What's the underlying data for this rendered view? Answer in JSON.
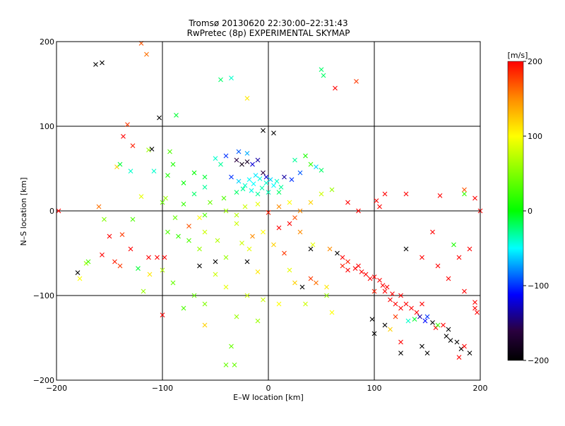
{
  "chart_data": {
    "type": "scatter",
    "title": "Tromsø 20130620 22:30:00–22:31:43",
    "subtitle": "RwPretec (8p) EXPERIMENTAL SKYMAP",
    "xlabel": "E–W location [km]",
    "ylabel": "N–S location [km]",
    "xlim": [
      -200,
      200
    ],
    "ylim": [
      -200,
      200
    ],
    "xticks": [
      "−200",
      "−100",
      "0",
      "100",
      "200"
    ],
    "yticks": [
      "−200",
      "−100",
      "0",
      "100",
      "200"
    ],
    "grid": true,
    "colorbar": {
      "label": "[m/s]",
      "range": [
        -200,
        200
      ],
      "ticks": [
        "200",
        "100",
        "0",
        "−100",
        "−200"
      ]
    },
    "points": [
      [
        -163,
        173,
        -200,
        "x"
      ],
      [
        -157,
        175,
        -200,
        "x"
      ],
      [
        -120,
        198,
        170,
        "x"
      ],
      [
        -115,
        185,
        160,
        "x"
      ],
      [
        -45,
        155,
        -20,
        "x"
      ],
      [
        -35,
        157,
        -40,
        "x"
      ],
      [
        -87,
        113,
        -10,
        "x"
      ],
      [
        -20,
        133,
        110,
        "x"
      ],
      [
        50,
        167,
        -20,
        "x"
      ],
      [
        52,
        160,
        -20,
        "x"
      ],
      [
        63,
        145,
        200,
        "x"
      ],
      [
        83,
        153,
        180,
        "x"
      ],
      [
        -103,
        110,
        -200,
        "x"
      ],
      [
        -5,
        95,
        -200,
        "x"
      ],
      [
        5,
        92,
        -200,
        "x"
      ],
      [
        -133,
        102,
        180,
        "x"
      ],
      [
        -137,
        88,
        200,
        "x"
      ],
      [
        -128,
        77,
        190,
        "x"
      ],
      [
        -113,
        72,
        60,
        "x"
      ],
      [
        -110,
        73,
        -200,
        "x"
      ],
      [
        -93,
        70,
        30,
        "x"
      ],
      [
        -143,
        52,
        120,
        "x"
      ],
      [
        -140,
        55,
        -10,
        "x"
      ],
      [
        -130,
        47,
        -40,
        "x"
      ],
      [
        -108,
        47,
        -40,
        "x"
      ],
      [
        -95,
        42,
        10,
        "x"
      ],
      [
        -80,
        33,
        0,
        "x"
      ],
      [
        -50,
        62,
        -40,
        "x"
      ],
      [
        -45,
        55,
        -30,
        "x"
      ],
      [
        -30,
        60,
        -150,
        "x"
      ],
      [
        -25,
        55,
        -180,
        "x"
      ],
      [
        -20,
        58,
        -170,
        "x"
      ],
      [
        -15,
        55,
        -120,
        "x"
      ],
      [
        -10,
        60,
        -130,
        "x"
      ],
      [
        -5,
        45,
        -150,
        "x"
      ],
      [
        -2,
        40,
        -120,
        "x"
      ],
      [
        -35,
        40,
        -100,
        "x"
      ],
      [
        -28,
        35,
        -60,
        "x"
      ],
      [
        -22,
        30,
        -40,
        "x"
      ],
      [
        -18,
        37,
        -50,
        "x"
      ],
      [
        -12,
        42,
        -55,
        "x"
      ],
      [
        -8,
        38,
        -45,
        "x"
      ],
      [
        -14,
        32,
        -50,
        "x"
      ],
      [
        -6,
        27,
        -35,
        "x"
      ],
      [
        -2,
        33,
        -40,
        "x"
      ],
      [
        2,
        37,
        -60,
        "x"
      ],
      [
        5,
        30,
        -50,
        "x"
      ],
      [
        8,
        35,
        -40,
        "x"
      ],
      [
        12,
        28,
        -30,
        "x"
      ],
      [
        -16,
        24,
        -45,
        "x"
      ],
      [
        -24,
        26,
        -30,
        "x"
      ],
      [
        -30,
        22,
        -20,
        "x"
      ],
      [
        -10,
        20,
        -30,
        "x"
      ],
      [
        0,
        22,
        -35,
        "x"
      ],
      [
        10,
        22,
        -20,
        "x"
      ],
      [
        15,
        40,
        -130,
        "x"
      ],
      [
        22,
        37,
        -100,
        "x"
      ],
      [
        30,
        45,
        -90,
        "x"
      ],
      [
        45,
        52,
        -60,
        "x"
      ],
      [
        50,
        48,
        -20,
        "x"
      ],
      [
        -60,
        28,
        -30,
        "x"
      ],
      [
        -70,
        20,
        -20,
        "x"
      ],
      [
        -55,
        10,
        40,
        "x"
      ],
      [
        -42,
        15,
        30,
        "x"
      ],
      [
        -22,
        5,
        80,
        "x"
      ],
      [
        0,
        -2,
        190,
        "x"
      ],
      [
        10,
        5,
        150,
        "x"
      ],
      [
        20,
        10,
        100,
        "x"
      ],
      [
        25,
        -8,
        170,
        "x"
      ],
      [
        -160,
        5,
        160,
        "x"
      ],
      [
        -120,
        17,
        90,
        "x"
      ],
      [
        -97,
        15,
        60,
        "x"
      ],
      [
        -88,
        -8,
        40,
        "x"
      ],
      [
        -75,
        -18,
        170,
        "x"
      ],
      [
        -65,
        -8,
        100,
        "x"
      ],
      [
        -95,
        -25,
        30,
        "x"
      ],
      [
        -85,
        -30,
        20,
        "x"
      ],
      [
        -75,
        -35,
        30,
        "x"
      ],
      [
        -150,
        -30,
        200,
        "x"
      ],
      [
        -138,
        -28,
        180,
        "x"
      ],
      [
        -130,
        -45,
        200,
        "x"
      ],
      [
        -157,
        -52,
        200,
        "x"
      ],
      [
        -145,
        -60,
        190,
        "x"
      ],
      [
        -140,
        -65,
        180,
        "x"
      ],
      [
        -180,
        -73,
        -200,
        "x"
      ],
      [
        -178,
        -80,
        100,
        "x"
      ],
      [
        -172,
        -62,
        60,
        "x"
      ],
      [
        -113,
        -55,
        200,
        "x"
      ],
      [
        -105,
        -55,
        200,
        "x"
      ],
      [
        -98,
        -55,
        200,
        "x"
      ],
      [
        -123,
        -68,
        -10,
        "x"
      ],
      [
        -112,
        -75,
        110,
        "x"
      ],
      [
        -100,
        -70,
        70,
        "x"
      ],
      [
        -118,
        -95,
        60,
        "x"
      ],
      [
        -90,
        -85,
        40,
        "x"
      ],
      [
        -100,
        -123,
        200,
        "x"
      ],
      [
        -65,
        -65,
        -200,
        "x"
      ],
      [
        -50,
        -60,
        -200,
        "x"
      ],
      [
        -65,
        -45,
        60,
        "x"
      ],
      [
        -60,
        -25,
        80,
        "x"
      ],
      [
        -48,
        -35,
        70,
        "x"
      ],
      [
        -40,
        -55,
        60,
        "x"
      ],
      [
        -30,
        -15,
        80,
        "x"
      ],
      [
        -20,
        -60,
        -200,
        "x"
      ],
      [
        -10,
        -72,
        110,
        "x"
      ],
      [
        -5,
        -105,
        80,
        "x"
      ],
      [
        -30,
        -125,
        60,
        "x"
      ],
      [
        -35,
        -160,
        40,
        "x"
      ],
      [
        -40,
        -182,
        40,
        "x"
      ],
      [
        -32,
        -182,
        40,
        "x"
      ],
      [
        -60,
        -135,
        120,
        "x"
      ],
      [
        20,
        -70,
        90,
        "x"
      ],
      [
        25,
        -85,
        120,
        "x"
      ],
      [
        32,
        -90,
        -200,
        "x"
      ],
      [
        40,
        -80,
        180,
        "x"
      ],
      [
        45,
        -85,
        160,
        "x"
      ],
      [
        55,
        -90,
        110,
        "x"
      ],
      [
        40,
        -45,
        -200,
        "x"
      ],
      [
        42,
        -40,
        90,
        "x"
      ],
      [
        58,
        -45,
        150,
        "x"
      ],
      [
        65,
        -50,
        -200,
        "x"
      ],
      [
        70,
        -55,
        200,
        "x"
      ],
      [
        75,
        -60,
        190,
        "x"
      ],
      [
        85,
        -65,
        200,
        "x"
      ],
      [
        70,
        -65,
        190,
        "x"
      ],
      [
        75,
        -70,
        200,
        "x"
      ],
      [
        82,
        -68,
        200,
        "x"
      ],
      [
        88,
        -72,
        200,
        "x"
      ],
      [
        92,
        -75,
        200,
        "x"
      ],
      [
        96,
        -80,
        200,
        "x"
      ],
      [
        100,
        -78,
        200,
        "x"
      ],
      [
        105,
        -82,
        200,
        "x"
      ],
      [
        108,
        -88,
        200,
        "x"
      ],
      [
        112,
        -90,
        200,
        "x"
      ],
      [
        100,
        -95,
        190,
        "x"
      ],
      [
        110,
        -95,
        200,
        "x"
      ],
      [
        117,
        -98,
        200,
        "x"
      ],
      [
        115,
        -105,
        200,
        "x"
      ],
      [
        120,
        -110,
        200,
        "x"
      ],
      [
        125,
        -115,
        200,
        "x"
      ],
      [
        130,
        -110,
        200,
        "x"
      ],
      [
        135,
        -115,
        200,
        "x"
      ],
      [
        140,
        -120,
        200,
        "x"
      ],
      [
        145,
        -110,
        200,
        "x"
      ],
      [
        125,
        -100,
        200,
        "x"
      ],
      [
        120,
        -125,
        180,
        "x"
      ],
      [
        132,
        -130,
        -40,
        "x"
      ],
      [
        138,
        -128,
        -10,
        "x"
      ],
      [
        143,
        -125,
        -130,
        "x"
      ],
      [
        148,
        -130,
        -110,
        "x"
      ],
      [
        150,
        -125,
        -100,
        "x"
      ],
      [
        155,
        -132,
        -200,
        "x"
      ],
      [
        158,
        -138,
        200,
        "x"
      ],
      [
        165,
        -135,
        200,
        "x"
      ],
      [
        170,
        -140,
        -200,
        "x"
      ],
      [
        168,
        -148,
        -200,
        "x"
      ],
      [
        172,
        -153,
        -200,
        "x"
      ],
      [
        178,
        -155,
        -200,
        "x"
      ],
      [
        182,
        -163,
        -200,
        "x"
      ],
      [
        185,
        -160,
        200,
        "x"
      ],
      [
        190,
        -168,
        -200,
        "x"
      ],
      [
        180,
        -173,
        200,
        "x"
      ],
      [
        145,
        -160,
        -200,
        "x"
      ],
      [
        150,
        -168,
        -200,
        "x"
      ],
      [
        125,
        -168,
        -200,
        "x"
      ],
      [
        100,
        -145,
        -200,
        "x"
      ],
      [
        98,
        -128,
        -200,
        "x"
      ],
      [
        110,
        -135,
        -200,
        "x"
      ],
      [
        115,
        -140,
        120,
        "x"
      ],
      [
        125,
        -155,
        200,
        "x"
      ],
      [
        160,
        -135,
        20,
        "x"
      ],
      [
        195,
        -108,
        200,
        "x"
      ],
      [
        195,
        -115,
        200,
        "x"
      ],
      [
        197,
        -120,
        200,
        "x"
      ],
      [
        185,
        -95,
        200,
        "x"
      ],
      [
        170,
        -80,
        200,
        "x"
      ],
      [
        160,
        -65,
        200,
        "x"
      ],
      [
        145,
        -55,
        200,
        "x"
      ],
      [
        130,
        -45,
        -200,
        "x"
      ],
      [
        180,
        -55,
        200,
        "x"
      ],
      [
        175,
        -40,
        10,
        "x"
      ],
      [
        190,
        -45,
        200,
        "x"
      ],
      [
        155,
        -25,
        200,
        "x"
      ],
      [
        185,
        20,
        20,
        "x"
      ],
      [
        162,
        18,
        200,
        "x"
      ],
      [
        130,
        20,
        200,
        "x"
      ],
      [
        110,
        20,
        200,
        "x"
      ],
      [
        102,
        12,
        200,
        "x"
      ],
      [
        105,
        5,
        200,
        "x"
      ],
      [
        185,
        25,
        170,
        "x"
      ],
      [
        195,
        15,
        200,
        "x"
      ],
      [
        200,
        0,
        200,
        "x"
      ],
      [
        -198,
        0,
        200,
        "x"
      ],
      [
        -25,
        -38,
        80,
        "x"
      ],
      [
        -15,
        -30,
        150,
        "x"
      ],
      [
        10,
        -20,
        200,
        "x"
      ],
      [
        20,
        -15,
        200,
        "x"
      ],
      [
        30,
        -25,
        150,
        "x"
      ],
      [
        15,
        -50,
        180,
        "x"
      ],
      [
        5,
        -40,
        120,
        "x"
      ],
      [
        -5,
        -25,
        100,
        "x"
      ],
      [
        -18,
        -45,
        90,
        "x"
      ],
      [
        -50,
        -75,
        80,
        "x"
      ],
      [
        -40,
        -90,
        90,
        "x"
      ],
      [
        -20,
        -100,
        80,
        "x"
      ],
      [
        -10,
        -130,
        60,
        "x"
      ],
      [
        10,
        -110,
        100,
        "x"
      ],
      [
        35,
        -110,
        80,
        "x"
      ],
      [
        55,
        -100,
        60,
        "x"
      ],
      [
        60,
        -120,
        100,
        "x"
      ],
      [
        -70,
        -100,
        40,
        "x"
      ],
      [
        -80,
        -115,
        30,
        "x"
      ],
      [
        -60,
        -110,
        50,
        "x"
      ],
      [
        -170,
        -60,
        30,
        "x"
      ],
      [
        -155,
        -10,
        50,
        "x"
      ],
      [
        -128,
        -10,
        30,
        "x"
      ],
      [
        -100,
        10,
        40,
        "x"
      ],
      [
        -80,
        8,
        20,
        "x"
      ],
      [
        -60,
        -5,
        30,
        "x"
      ],
      [
        -40,
        0,
        60,
        "x"
      ],
      [
        -30,
        -5,
        70,
        "x"
      ],
      [
        -10,
        8,
        90,
        "x"
      ],
      [
        30,
        0,
        150,
        "x"
      ],
      [
        40,
        10,
        120,
        "x"
      ],
      [
        50,
        20,
        80,
        "x"
      ],
      [
        60,
        25,
        60,
        "x"
      ],
      [
        75,
        10,
        200,
        "x"
      ],
      [
        85,
        0,
        200,
        "x"
      ],
      [
        -90,
        55,
        10,
        "x"
      ],
      [
        -70,
        45,
        0,
        "x"
      ],
      [
        -60,
        40,
        -10,
        "x"
      ],
      [
        -40,
        65,
        -100,
        "x"
      ],
      [
        -28,
        70,
        -90,
        "x"
      ],
      [
        -20,
        68,
        -70,
        "x"
      ],
      [
        25,
        60,
        -30,
        "x"
      ],
      [
        35,
        65,
        10,
        "x"
      ],
      [
        40,
        55,
        20,
        "x"
      ]
    ]
  }
}
